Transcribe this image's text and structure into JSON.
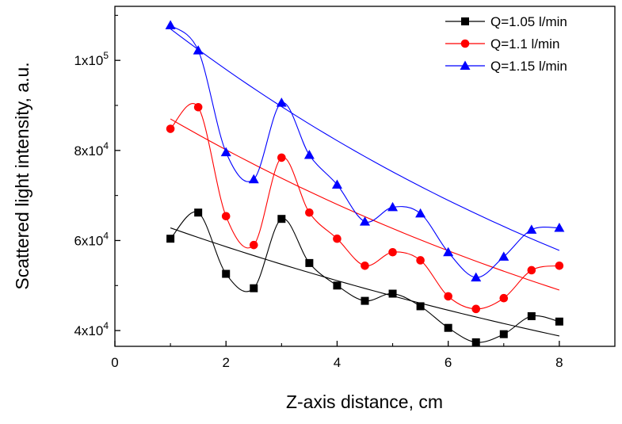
{
  "chart_data": {
    "type": "scatter",
    "title": "",
    "xlabel": "Z-axis distance, cm",
    "ylabel": "Scattered light intensity, a.u.",
    "xlim": [
      0,
      9
    ],
    "ylim": [
      36500,
      112000
    ],
    "grid": false,
    "legend_position": "top-right",
    "x_ticks": [
      {
        "value": 0,
        "label": "0"
      },
      {
        "value": 2,
        "label": "2"
      },
      {
        "value": 4,
        "label": "4"
      },
      {
        "value": 6,
        "label": "6"
      },
      {
        "value": 8,
        "label": "8"
      }
    ],
    "y_ticks": [
      {
        "value": 40000,
        "base": "4x10",
        "exp": "4"
      },
      {
        "value": 60000,
        "base": "6x10",
        "exp": "4"
      },
      {
        "value": 80000,
        "base": "8x10",
        "exp": "4"
      },
      {
        "value": 100000,
        "base": "1x10",
        "exp": "5"
      }
    ],
    "x": [
      1,
      1.5,
      2,
      2.5,
      3,
      3.5,
      4,
      4.5,
      5,
      5.5,
      6,
      6.5,
      7,
      7.5,
      8
    ],
    "series": [
      {
        "name": "Q=1.05 l/min",
        "color": "#000000",
        "marker": "square",
        "values": [
          60400,
          66200,
          52600,
          49400,
          64800,
          55000,
          50000,
          46600,
          48200,
          45400,
          40600,
          37400,
          39200,
          43200,
          42000
        ],
        "trend": {
          "start": 62800,
          "end": 38800
        }
      },
      {
        "name": "Q=1.1 l/min",
        "color": "#ff0000",
        "marker": "circle",
        "values": [
          84800,
          89600,
          65400,
          59000,
          78400,
          66200,
          60400,
          54400,
          57400,
          55600,
          47600,
          44800,
          47200,
          53400,
          54400
        ],
        "trend": {
          "start": 87000,
          "end": 49000
        }
      },
      {
        "name": "Q=1.15 l/min",
        "color": "#0000ff",
        "marker": "triangle",
        "values": [
          107800,
          102200,
          79600,
          73600,
          90600,
          79000,
          72400,
          64200,
          67400,
          66000,
          57400,
          51800,
          56400,
          62400,
          62800
        ],
        "trend": {
          "start": 107000,
          "end": 57800
        }
      }
    ]
  }
}
